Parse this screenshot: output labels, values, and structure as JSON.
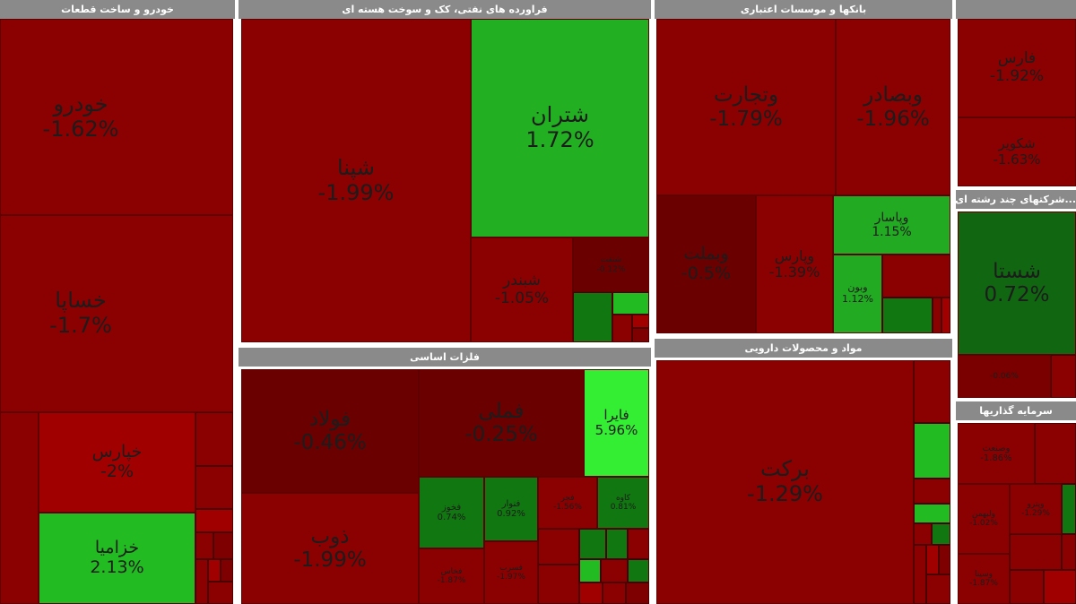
{
  "colors": {
    "dark_red": "#7f0000",
    "red": "#8b0000",
    "mid_red": "#a00000",
    "deep_red": "#5e0000",
    "green": "#22b022",
    "dark_green": "#116611",
    "light_green": "#33ee33",
    "header_bg": "#8a8a8a"
  },
  "sectors": [
    {
      "id": "auto",
      "title": "خودرو و ساخت قطعات"
    },
    {
      "id": "petro",
      "title": "فراورده های نفتی، کک و سوخت هسته ای"
    },
    {
      "id": "banks",
      "title": "بانکها و موسسات اعتباری"
    },
    {
      "id": "topright",
      "title": ""
    },
    {
      "id": "metals",
      "title": "فلزات اساسی"
    },
    {
      "id": "pharma",
      "title": "مواد و محصولات دارویی"
    },
    {
      "id": "multi",
      "title": "...شرکتهای چند رشته ای"
    },
    {
      "id": "invest",
      "title": "سرمایه گذاریها"
    }
  ],
  "tiles": [
    {
      "id": "khodro",
      "name": "خودرو",
      "pct": "-1.62%"
    },
    {
      "id": "khsapa",
      "name": "خساپا",
      "pct": "-1.7%"
    },
    {
      "id": "khparis",
      "name": "خپارس",
      "pct": "-2%"
    },
    {
      "id": "khzamia",
      "name": "خزامیا",
      "pct": "2.13%"
    },
    {
      "id": "shepna",
      "name": "شپنا",
      "pct": "-1.99%"
    },
    {
      "id": "shetran",
      "name": "شتران",
      "pct": "1.72%"
    },
    {
      "id": "shebandar",
      "name": "شبندر",
      "pct": "-1.05%"
    },
    {
      "id": "petro_s1",
      "name": "شنفت",
      "pct": "-0.12%"
    },
    {
      "id": "vtejarat",
      "name": "وتجارت",
      "pct": "-1.79%"
    },
    {
      "id": "vbsader",
      "name": "وبصادر",
      "pct": "-1.96%"
    },
    {
      "id": "vmellat",
      "name": "وبملت",
      "pct": "-0.5%"
    },
    {
      "id": "vpars",
      "name": "وپارس",
      "pct": "-1.39%"
    },
    {
      "id": "vpasar",
      "name": "وپاسار",
      "pct": "1.15%"
    },
    {
      "id": "vbon",
      "name": "وبون",
      "pct": "1.12%"
    },
    {
      "id": "fars",
      "name": "فارس",
      "pct": "-1.92%"
    },
    {
      "id": "shekoviar",
      "name": "شکویر",
      "pct": "-1.63%"
    },
    {
      "id": "foolad",
      "name": "فولاد",
      "pct": "-0.46%"
    },
    {
      "id": "femli",
      "name": "فملی",
      "pct": "-0.25%"
    },
    {
      "id": "faira",
      "name": "فایرا",
      "pct": "5.96%"
    },
    {
      "id": "zob",
      "name": "ذوب",
      "pct": "-1.99%"
    },
    {
      "id": "met_s1",
      "name": "فخوز",
      "pct": "0.74%"
    },
    {
      "id": "met_s2",
      "name": "فنوار",
      "pct": "0.92%"
    },
    {
      "id": "met_s3",
      "name": "فجر",
      "pct": "-1.56%"
    },
    {
      "id": "met_s4",
      "name": "کاوه",
      "pct": "0.81%"
    },
    {
      "id": "met_s5",
      "name": "فخاس",
      "pct": "-1.87%"
    },
    {
      "id": "met_s6",
      "name": "فسرب",
      "pct": "-1.97%"
    },
    {
      "id": "barkat",
      "name": "برکت",
      "pct": "-1.29%"
    },
    {
      "id": "shasta",
      "name": "شستا",
      "pct": "0.72%"
    },
    {
      "id": "multi_s1",
      "name": "",
      "pct": "-0.06%"
    },
    {
      "id": "inv_s1",
      "name": "وصنعت",
      "pct": "-1.86%"
    },
    {
      "id": "inv_s2",
      "name": "ولبهمن",
      "pct": "-1.02%"
    },
    {
      "id": "inv_s3",
      "name": "وپترو",
      "pct": "-1.29%"
    },
    {
      "id": "inv_s4",
      "name": "وسینا",
      "pct": "-1.87%"
    }
  ]
}
